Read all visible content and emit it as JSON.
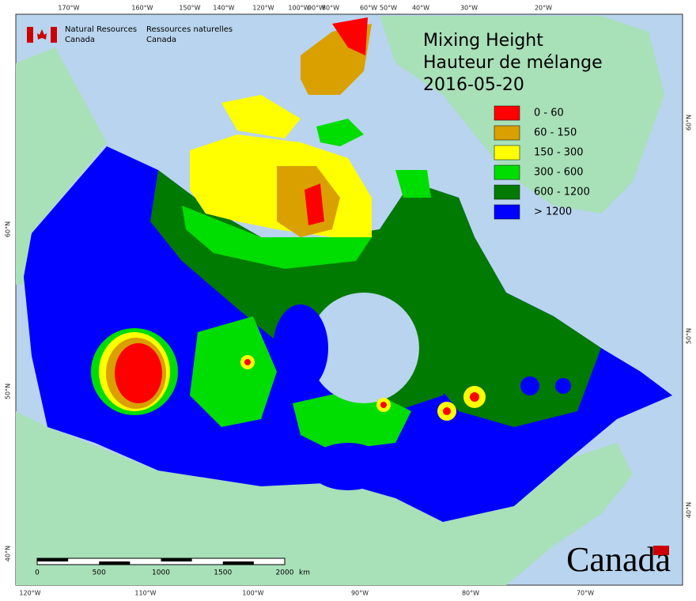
{
  "agency": {
    "en": [
      "Natural Resources",
      "Canada"
    ],
    "fr": [
      "Ressources naturelles",
      "Canada"
    ]
  },
  "title": [
    "Mixing Height",
    "Hauteur de mélange",
    "2016-05-20"
  ],
  "legend": [
    {
      "label": "0 - 60",
      "color": "#ff0000"
    },
    {
      "label": "60 - 150",
      "color": "#d9a000"
    },
    {
      "label": "150 - 300",
      "color": "#ffff00"
    },
    {
      "label": "300 - 600",
      "color": "#00dd00"
    },
    {
      "label": "600 - 1200",
      "color": "#007a00"
    },
    {
      "label": "> 1200",
      "color": "#0000ff"
    }
  ],
  "scale_bar": {
    "ticks": [
      "0",
      "500",
      "1000",
      "1500",
      "2000"
    ],
    "unit": "km"
  },
  "graticule": {
    "top": [
      "170°W",
      "160°W",
      "150°W",
      "140°W",
      "120°W",
      "100°W",
      "90°W",
      "80°W",
      "60°W",
      "50°W",
      "40°W",
      "30°W",
      "20°W"
    ],
    "bottom": [
      "120°W",
      "110°W",
      "100°W",
      "90°W",
      "80°W",
      "70°W"
    ],
    "left": [
      "60°N",
      "50°N",
      "40°N"
    ],
    "right": [
      "60°N",
      "50°N",
      "40°N"
    ]
  },
  "wordmark": "Canada"
}
